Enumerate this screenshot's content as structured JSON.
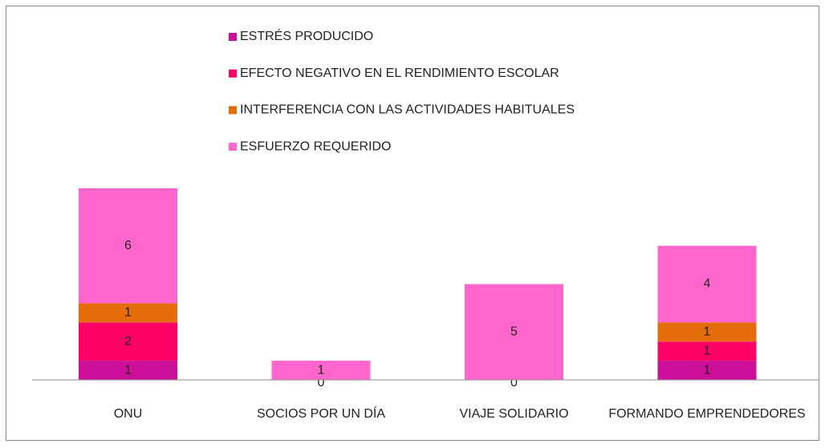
{
  "chart_data": {
    "type": "stacked_bar",
    "categories": [
      "ONU",
      "SOCIOS POR UN DÍA",
      "VIAJE SOLIDARIO",
      "FORMANDO EMPRENDEDORES"
    ],
    "series": [
      {
        "name": "ESTRÉS PRODUCIDO",
        "color": "#cc0f99",
        "values": [
          1,
          0,
          0,
          1
        ]
      },
      {
        "name": "EFECTO NEGATIVO EN EL RENDIMIENTO ESCOLAR",
        "color": "#ff0066",
        "values": [
          2,
          null,
          null,
          1
        ]
      },
      {
        "name": "INTERFERENCIA CON LAS ACTIVIDADES HABITUALES",
        "color": "#e46c0a",
        "values": [
          1,
          null,
          null,
          1
        ]
      },
      {
        "name": "ESFUERZO REQUERIDO",
        "color": "#ff66cc",
        "values": [
          6,
          1,
          5,
          4
        ]
      }
    ],
    "ylim": [
      0,
      10
    ],
    "legend": "top"
  }
}
